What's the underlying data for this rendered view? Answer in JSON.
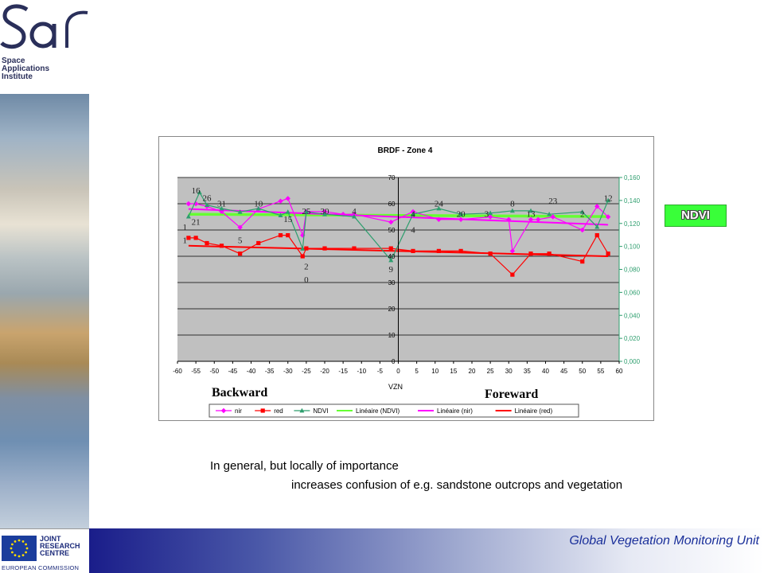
{
  "branding": {
    "logo_line1": "Space",
    "logo_line2": "Applications",
    "logo_line3": "Institute",
    "jrc_line1": "JOINT",
    "jrc_line2": "RESEARCH",
    "jrc_line3": "CENTRE",
    "commission": "EUROPEAN COMMISSION"
  },
  "footer": {
    "unit_title": "Global Vegetation Monitoring Unit"
  },
  "badge": {
    "label": "NDVI"
  },
  "labels": {
    "backward": "Backward",
    "foreward": "Foreward"
  },
  "body_text": {
    "line1": "In general, but locally of importance",
    "line2": "increases confusion of e.g. sandstone outcrops and vegetation"
  },
  "colors": {
    "nir": "#ff00ff",
    "red": "#ff0000",
    "ndvi": "#2e9e6e",
    "trend_ndvi": "#66ff33",
    "plot_bg": "#c0c0c0"
  },
  "chart_data": {
    "type": "line",
    "title": "BRDF - Zone 4",
    "xlabel": "VZN",
    "xlim": [
      -60,
      60
    ],
    "ylim_left": [
      0,
      70
    ],
    "ylim_right": [
      0,
      0.16
    ],
    "x_ticks": [
      "-60",
      "-55",
      "-50",
      "-45",
      "-40",
      "-35",
      "-30",
      "-25",
      "-20",
      "-15",
      "-10",
      "-5",
      "0",
      "5",
      "10",
      "15",
      "20",
      "25",
      "30",
      "35",
      "40",
      "45",
      "50",
      "55",
      "60"
    ],
    "left_ticks": [
      "0",
      "10",
      "20",
      "30",
      "40",
      "50",
      "60",
      "70"
    ],
    "right_ticks": [
      "0,000",
      "0,020",
      "0,040",
      "0,060",
      "0,080",
      "0,100",
      "0,120",
      "0,140",
      "0,160"
    ],
    "legend_position": "bottom",
    "grid": true,
    "series": [
      {
        "name": "nir",
        "axis": "left",
        "x": [
          -57,
          -55,
          -52,
          -48,
          -43,
          -38,
          -32,
          -30,
          -26,
          -25,
          -20,
          -15,
          -12,
          -2,
          4,
          11,
          17,
          25,
          30,
          31,
          36,
          38,
          42,
          50,
          54,
          57
        ],
        "y": [
          60,
          60,
          59,
          57,
          51,
          58,
          61,
          62,
          48,
          57,
          57,
          56,
          56,
          53,
          57,
          54,
          54,
          55,
          54,
          42,
          54,
          54,
          55,
          50,
          59,
          55
        ]
      },
      {
        "name": "red",
        "axis": "left",
        "x": [
          -57,
          -55,
          -52,
          -48,
          -43,
          -38,
          -32,
          -30,
          -26,
          -25,
          -20,
          -12,
          -2,
          4,
          11,
          17,
          25,
          31,
          36,
          41,
          50,
          54,
          57
        ],
        "y": [
          47,
          47,
          45,
          44,
          41,
          45,
          48,
          48,
          40,
          43,
          43,
          43,
          43,
          42,
          42,
          42,
          41,
          33,
          41,
          41,
          38,
          48,
          41
        ]
      },
      {
        "name": "NDVI",
        "axis": "right",
        "x": [
          -57,
          -54,
          -52,
          -48,
          -43,
          -38,
          -32,
          -30,
          -26,
          -25,
          -20,
          -12,
          -2,
          4,
          11,
          17,
          25,
          31,
          36,
          41,
          50,
          54,
          57
        ],
        "y": [
          0.126,
          0.147,
          0.136,
          0.133,
          0.13,
          0.133,
          0.127,
          0.13,
          0.098,
          0.13,
          0.128,
          0.126,
          0.088,
          0.128,
          0.133,
          0.128,
          0.129,
          0.131,
          0.131,
          0.128,
          0.13,
          0.117,
          0.14
        ]
      },
      {
        "name": "Linéaire (NDVI)",
        "axis": "right",
        "x": [
          -57,
          57
        ],
        "y": [
          0.128,
          0.126
        ]
      },
      {
        "name": "Linéaire (nir)",
        "axis": "left",
        "x": [
          -57,
          57
        ],
        "y": [
          58,
          52
        ]
      },
      {
        "name": "Linéaire (red)",
        "axis": "left",
        "x": [
          -57,
          57
        ],
        "y": [
          44,
          40
        ]
      }
    ],
    "annotations": [
      {
        "text": "16",
        "x": -55,
        "y": 64
      },
      {
        "text": "26",
        "x": -52,
        "y": 61
      },
      {
        "text": "31",
        "x": -48,
        "y": 59
      },
      {
        "text": "10",
        "x": -38,
        "y": 59
      },
      {
        "text": "1",
        "x": -58,
        "y": 50
      },
      {
        "text": "21",
        "x": -55,
        "y": 52
      },
      {
        "text": "1",
        "x": -58,
        "y": 45
      },
      {
        "text": "5",
        "x": -43,
        "y": 45
      },
      {
        "text": "15",
        "x": -30,
        "y": 53
      },
      {
        "text": "25",
        "x": -25,
        "y": 56
      },
      {
        "text": "30",
        "x": -20,
        "y": 56
      },
      {
        "text": "4",
        "x": -12,
        "y": 56
      },
      {
        "text": "2",
        "x": -25,
        "y": 35
      },
      {
        "text": "0",
        "x": -25,
        "y": 30
      },
      {
        "text": "9",
        "x": -2,
        "y": 34
      },
      {
        "text": "4",
        "x": 4,
        "y": 55
      },
      {
        "text": "4",
        "x": 4,
        "y": 49
      },
      {
        "text": "24",
        "x": 11,
        "y": 59
      },
      {
        "text": "20",
        "x": 17,
        "y": 55
      },
      {
        "text": "3",
        "x": 24,
        "y": 55
      },
      {
        "text": "8",
        "x": 31,
        "y": 59
      },
      {
        "text": "13",
        "x": 36,
        "y": 55
      },
      {
        "text": "23",
        "x": 42,
        "y": 60
      },
      {
        "text": "2",
        "x": 50,
        "y": 55
      },
      {
        "text": "12",
        "x": 57,
        "y": 61
      }
    ]
  }
}
